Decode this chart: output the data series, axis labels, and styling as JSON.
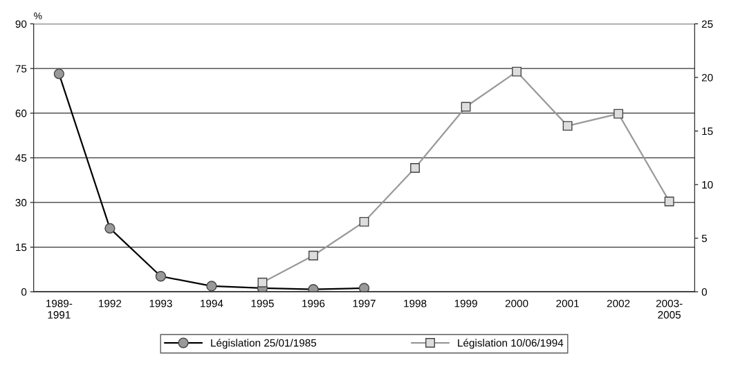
{
  "chart_data": {
    "type": "line",
    "ylabel": "%",
    "categories": [
      "1989-\n1991",
      "1992",
      "1993",
      "1994",
      "1995",
      "1996",
      "1997",
      "1998",
      "1999",
      "2000",
      "2001",
      "2002",
      "2003-\n2005"
    ],
    "series": [
      {
        "name": "Législation 25/01/1985",
        "color": "#000000",
        "marker": "circle",
        "values": [
          73.2,
          21.3,
          5.2,
          1.9,
          1.2,
          0.8,
          1.2,
          null,
          null,
          null,
          null,
          null,
          null
        ]
      },
      {
        "name": "Législation 10/06/1994",
        "color": "#999999",
        "marker": "square",
        "axis": "y2",
        "values": [
          null,
          null,
          null,
          null,
          0.86,
          3.38,
          6.53,
          11.55,
          17.26,
          20.54,
          15.48,
          16.61,
          8.43
        ]
      }
    ],
    "ylim": [
      0,
      90
    ],
    "yticks": [
      0,
      15,
      30,
      45,
      60,
      75,
      90
    ],
    "y2lim": [
      0,
      25
    ],
    "y2ticks": [
      0,
      5,
      10,
      15,
      20,
      25
    ],
    "grid": "y",
    "legend": "bottom",
    "line_style": "solid"
  }
}
